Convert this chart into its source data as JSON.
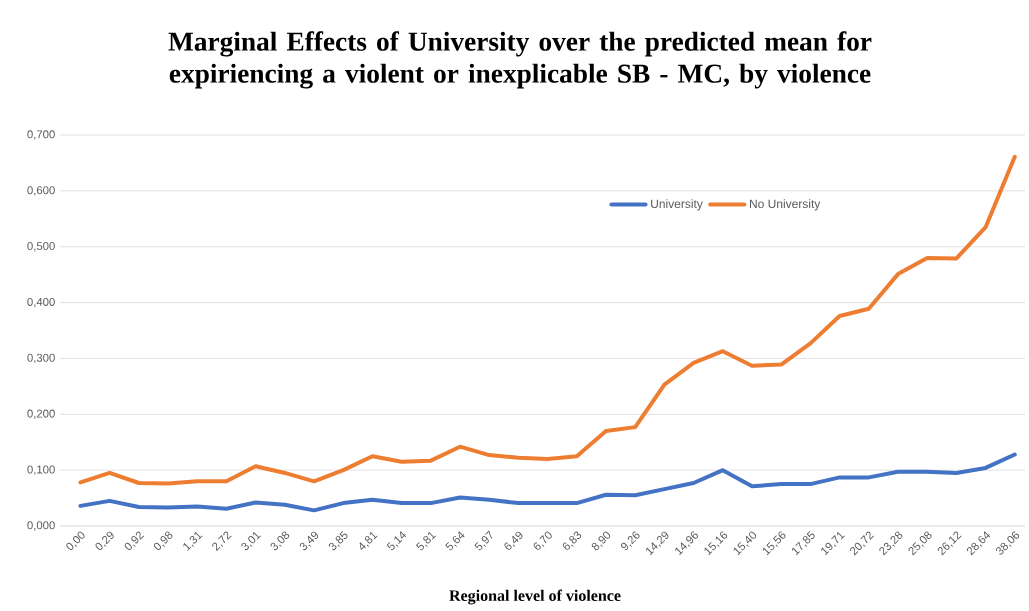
{
  "chart_data": {
    "type": "line",
    "title": "Marginal Effects of University over the predicted mean for expiriencing a violent or inexplicable SB - MC, by violence",
    "xlabel": "Regional level of violence",
    "categories": [
      "0,00",
      "0,29",
      "0,92",
      "0,98",
      "1,31",
      "2,72",
      "3,01",
      "3,08",
      "3,49",
      "3,85",
      "4,81",
      "5,14",
      "5,81",
      "5,64",
      "5,97",
      "6,49",
      "6,70",
      "6,83",
      "8,90",
      "9,26",
      "14,29",
      "14,96",
      "15,16",
      "15,40",
      "15,56",
      "17,85",
      "19,71",
      "20,72",
      "23,28",
      "25,08",
      "26,12",
      "28,64",
      "38,06"
    ],
    "series": [
      {
        "name": "University",
        "color": "#4472c4",
        "values": [
          0.036,
          0.045,
          0.034,
          0.033,
          0.035,
          0.031,
          0.042,
          0.038,
          0.028,
          0.041,
          0.047,
          0.041,
          0.041,
          0.051,
          0.047,
          0.041,
          0.041,
          0.041,
          0.056,
          0.055,
          0.066,
          0.077,
          0.1,
          0.071,
          0.075,
          0.075,
          0.087,
          0.087,
          0.097,
          0.097,
          0.095,
          0.104,
          0.128
        ]
      },
      {
        "name": "No University",
        "color": "#ed7d31",
        "values": [
          0.078,
          0.095,
          0.077,
          0.076,
          0.08,
          0.08,
          0.107,
          0.095,
          0.08,
          0.1,
          0.125,
          0.115,
          0.117,
          0.142,
          0.127,
          0.122,
          0.12,
          0.125,
          0.17,
          0.177,
          0.253,
          0.292,
          0.313,
          0.287,
          0.289,
          0.327,
          0.376,
          0.389,
          0.451,
          0.48,
          0.479,
          0.535,
          0.661
        ]
      }
    ],
    "ylim": [
      0,
      0.7
    ],
    "yticks": [
      {
        "value": 0,
        "label": "0,000"
      },
      {
        "value": 0.1,
        "label": "0,100"
      },
      {
        "value": 0.2,
        "label": "0,200"
      },
      {
        "value": 0.3,
        "label": "0,300"
      },
      {
        "value": 0.4,
        "label": "0,400"
      },
      {
        "value": 0.5,
        "label": "0,500"
      },
      {
        "value": 0.6,
        "label": "0,600"
      },
      {
        "value": 0.7,
        "label": "0,700"
      }
    ],
    "grid": "y",
    "legend": "top",
    "marker": "none",
    "line_style": "solid"
  }
}
